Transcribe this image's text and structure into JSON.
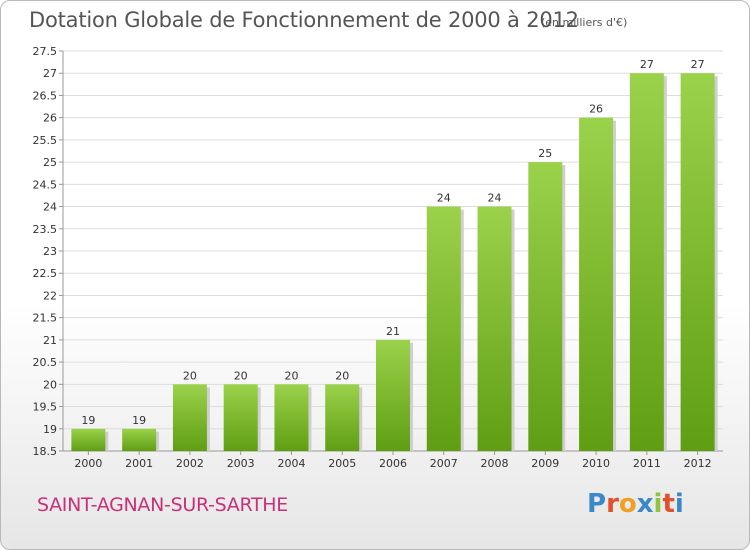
{
  "header": {
    "title": "Dotation Globale de Fonctionnement de 2000 à 2012",
    "unit": "(en milliers d'€)"
  },
  "footer": {
    "commune": "SAINT-AGNAN-SUR-SARTHE",
    "brand_letters": [
      "P",
      "r",
      "o",
      "x",
      "i",
      "t",
      "i"
    ],
    "brand_colors": [
      "#3b88c8",
      "#e3502c",
      "#f0a020",
      "#3b88c8",
      "#8cc63f",
      "#e3502c",
      "#3b88c8"
    ]
  },
  "colors": {
    "bar_light": "#9bd24b",
    "bar_dark": "#5f9e12",
    "commune": "#c8307a"
  },
  "chart_data": {
    "type": "bar",
    "title": "Dotation Globale de Fonctionnement de 2000 à 2012",
    "subtitle": "(en milliers d'€)",
    "categories": [
      "2000",
      "2001",
      "2002",
      "2003",
      "2004",
      "2005",
      "2006",
      "2007",
      "2008",
      "2009",
      "2010",
      "2011",
      "2012"
    ],
    "values": [
      19,
      19,
      20,
      20,
      20,
      20,
      21,
      24,
      24,
      25,
      26,
      27,
      27
    ],
    "data_labels": [
      "19",
      "19",
      "20",
      "20",
      "20",
      "20",
      "21",
      "24",
      "24",
      "25",
      "26",
      "27",
      "27"
    ],
    "yticks": [
      "18.5",
      "19",
      "19.5",
      "20",
      "20.5",
      "21",
      "21.5",
      "22",
      "22.5",
      "23",
      "23.5",
      "24",
      "24.5",
      "25",
      "25.5",
      "26",
      "26.5",
      "27",
      "27.5"
    ],
    "ylim": [
      18.5,
      27.5
    ],
    "grid": true,
    "legend": "none"
  }
}
